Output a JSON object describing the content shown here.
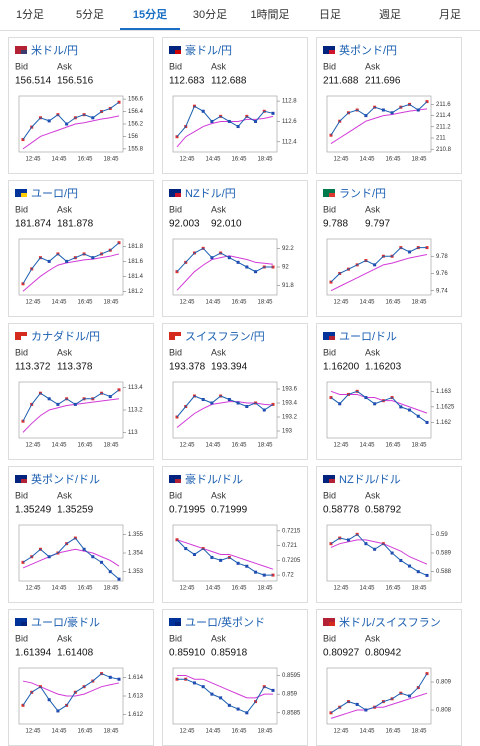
{
  "tabs": [
    "1分足",
    "5分足",
    "15分足",
    "30分足",
    "1時間足",
    "日足",
    "週足",
    "月足"
  ],
  "active_tab": 2,
  "bid_label": "Bid",
  "ask_label": "Ask",
  "x_labels": [
    "12:45",
    "14:45",
    "16:45",
    "18:45"
  ],
  "cards": [
    {
      "title": "米ドル/円",
      "bid": "156.514",
      "ask": "156.516",
      "flag": [
        "#b22234",
        "#3c3b6e"
      ],
      "ylim": [
        155.75,
        156.65
      ],
      "yticks": [
        155.8,
        156,
        156.2,
        156.4,
        156.6
      ],
      "closes": [
        155.95,
        156.15,
        156.3,
        156.25,
        156.35,
        156.2,
        156.3,
        156.35,
        156.3,
        156.4,
        156.45,
        156.55
      ],
      "ma": [
        155.8,
        155.9,
        156.0,
        156.05,
        156.1,
        156.15,
        156.2,
        156.22,
        156.25,
        156.28,
        156.3,
        156.33
      ]
    },
    {
      "title": "豪ドル/円",
      "bid": "112.683",
      "ask": "112.688",
      "flag": [
        "#00247d",
        "#cc0000"
      ],
      "ylim": [
        112.3,
        112.85
      ],
      "yticks": [
        112.4,
        112.6,
        112.8
      ],
      "closes": [
        112.45,
        112.55,
        112.75,
        112.7,
        112.6,
        112.65,
        112.6,
        112.55,
        112.65,
        112.6,
        112.7,
        112.68
      ],
      "ma": [
        112.35,
        112.45,
        112.5,
        112.55,
        112.58,
        112.6,
        112.6,
        112.6,
        112.62,
        112.62,
        112.63,
        112.65
      ]
    },
    {
      "title": "英ポンド/円",
      "bid": "211.688",
      "ask": "211.696",
      "flag": [
        "#00247d",
        "#cf142b"
      ],
      "ylim": [
        210.75,
        211.75
      ],
      "yticks": [
        210.8,
        211,
        211.2,
        211.4,
        211.6
      ],
      "closes": [
        211.05,
        211.3,
        211.45,
        211.5,
        211.4,
        211.55,
        211.5,
        211.45,
        211.55,
        211.6,
        211.5,
        211.65
      ],
      "ma": [
        210.9,
        211.0,
        211.1,
        211.2,
        211.3,
        211.35,
        211.4,
        211.42,
        211.45,
        211.48,
        211.5,
        211.52
      ]
    },
    {
      "title": "ユーロ/円",
      "bid": "181.874",
      "ask": "181.878",
      "flag": [
        "#003399",
        "#ffcc00"
      ],
      "ylim": [
        181.15,
        181.9
      ],
      "yticks": [
        181.2,
        181.4,
        181.6,
        181.8
      ],
      "closes": [
        181.3,
        181.5,
        181.65,
        181.6,
        181.7,
        181.6,
        181.65,
        181.7,
        181.65,
        181.7,
        181.75,
        181.85
      ],
      "ma": [
        181.2,
        181.3,
        181.4,
        181.48,
        181.55,
        181.58,
        181.6,
        181.62,
        181.63,
        181.65,
        181.67,
        181.7
      ]
    },
    {
      "title": "NZドル/円",
      "bid": "92.003",
      "ask": "92.010",
      "flag": [
        "#00247d",
        "#cc142b"
      ],
      "ylim": [
        91.7,
        92.3
      ],
      "yticks": [
        91.8,
        92,
        92.2
      ],
      "closes": [
        91.95,
        92.05,
        92.15,
        92.2,
        92.1,
        92.15,
        92.1,
        92.05,
        92.0,
        91.95,
        92.0,
        92.0
      ],
      "ma": [
        91.75,
        91.85,
        91.95,
        92.02,
        92.08,
        92.1,
        92.12,
        92.1,
        92.08,
        92.05,
        92.04,
        92.03
      ]
    },
    {
      "title": "ランド/円",
      "bid": "9.788",
      "ask": "9.797",
      "flag": [
        "#007a4d",
        "#de3831"
      ],
      "ylim": [
        9.735,
        9.8
      ],
      "yticks": [
        9.74,
        9.76,
        9.78
      ],
      "closes": [
        9.75,
        9.76,
        9.765,
        9.77,
        9.775,
        9.77,
        9.78,
        9.78,
        9.79,
        9.785,
        9.79,
        9.79
      ],
      "ma": [
        9.74,
        9.745,
        9.75,
        9.755,
        9.76,
        9.765,
        9.77,
        9.772,
        9.775,
        9.778,
        9.78,
        9.782
      ]
    },
    {
      "title": "カナダドル/円",
      "bid": "113.372",
      "ask": "113.378",
      "flag": [
        "#d52b1e",
        "#ffffff"
      ],
      "ylim": [
        112.95,
        113.45
      ],
      "yticks": [
        113,
        113.2,
        113.4
      ],
      "closes": [
        113.1,
        113.25,
        113.35,
        113.3,
        113.25,
        113.3,
        113.25,
        113.3,
        113.3,
        113.35,
        113.32,
        113.38
      ],
      "ma": [
        113.0,
        113.08,
        113.15,
        113.2,
        113.22,
        113.24,
        113.25,
        113.26,
        113.27,
        113.28,
        113.29,
        113.3
      ]
    },
    {
      "title": "スイスフラン/円",
      "bid": "193.378",
      "ask": "193.394",
      "flag": [
        "#d52b1e",
        "#ffffff"
      ],
      "ylim": [
        192.9,
        193.7
      ],
      "yticks": [
        193,
        193.2,
        193.4,
        193.6
      ],
      "closes": [
        193.2,
        193.35,
        193.5,
        193.45,
        193.4,
        193.5,
        193.45,
        193.4,
        193.35,
        193.4,
        193.3,
        193.38
      ],
      "ma": [
        193.05,
        193.15,
        193.25,
        193.32,
        193.38,
        193.4,
        193.42,
        193.42,
        193.4,
        193.4,
        193.38,
        193.37
      ]
    },
    {
      "title": "ユーロ/ドル",
      "bid": "1.16200",
      "ask": "1.16203",
      "flag": [
        "#003399",
        "#b22234"
      ],
      "ylim": [
        1.1615,
        1.1633
      ],
      "yticks": [
        1.162,
        1.1625,
        1.163
      ],
      "closes": [
        1.1628,
        1.1626,
        1.1629,
        1.163,
        1.1628,
        1.1626,
        1.1627,
        1.1628,
        1.1625,
        1.1624,
        1.1622,
        1.162
      ],
      "ma": [
        1.163,
        1.1629,
        1.1629,
        1.1629,
        1.1628,
        1.1628,
        1.1627,
        1.1627,
        1.1626,
        1.1625,
        1.1624,
        1.1623
      ]
    },
    {
      "title": "英ポンド/ドル",
      "bid": "1.35249",
      "ask": "1.35259",
      "flag": [
        "#00247d",
        "#b22234"
      ],
      "ylim": [
        1.3525,
        1.3555
      ],
      "yticks": [
        1.353,
        1.354,
        1.355
      ],
      "closes": [
        1.3535,
        1.3538,
        1.3542,
        1.3538,
        1.354,
        1.3545,
        1.3548,
        1.3542,
        1.3538,
        1.3535,
        1.353,
        1.3526
      ],
      "ma": [
        1.3532,
        1.3534,
        1.3536,
        1.3538,
        1.354,
        1.3541,
        1.3542,
        1.3541,
        1.354,
        1.3538,
        1.3536,
        1.3533
      ]
    },
    {
      "title": "豪ドル/ドル",
      "bid": "0.71995",
      "ask": "0.71999",
      "flag": [
        "#00247d",
        "#b22234"
      ],
      "ylim": [
        0.7198,
        0.7217
      ],
      "yticks": [
        0.72,
        0.7205,
        0.721,
        0.7215
      ],
      "closes": [
        0.7212,
        0.7209,
        0.7207,
        0.7209,
        0.7206,
        0.7205,
        0.7206,
        0.7204,
        0.7203,
        0.7201,
        0.72,
        0.72
      ],
      "ma": [
        0.7212,
        0.7211,
        0.721,
        0.7209,
        0.7208,
        0.7207,
        0.7207,
        0.7206,
        0.7205,
        0.7204,
        0.7203,
        0.7202
      ]
    },
    {
      "title": "NZドル/ドル",
      "bid": "0.58778",
      "ask": "0.58792",
      "flag": [
        "#00247d",
        "#b22234"
      ],
      "ylim": [
        0.5875,
        0.5905
      ],
      "yticks": [
        0.588,
        0.589,
        0.59
      ],
      "closes": [
        0.5895,
        0.5898,
        0.5897,
        0.59,
        0.5895,
        0.5892,
        0.5895,
        0.589,
        0.5886,
        0.5883,
        0.588,
        0.5878
      ],
      "ma": [
        0.5893,
        0.5895,
        0.5896,
        0.5897,
        0.5897,
        0.5896,
        0.5895,
        0.5893,
        0.5891,
        0.5888,
        0.5886,
        0.5884
      ]
    },
    {
      "title": "ユーロ/豪ドル",
      "bid": "1.61394",
      "ask": "1.61408",
      "flag": [
        "#003399",
        "#00247d"
      ],
      "ylim": [
        1.6115,
        1.6145
      ],
      "yticks": [
        1.612,
        1.613,
        1.614
      ],
      "closes": [
        1.6125,
        1.6132,
        1.6135,
        1.6128,
        1.6122,
        1.6125,
        1.6132,
        1.6135,
        1.6138,
        1.6142,
        1.614,
        1.6139
      ],
      "ma": [
        1.6138,
        1.6137,
        1.6135,
        1.6133,
        1.6131,
        1.613,
        1.613,
        1.6131,
        1.6133,
        1.6135,
        1.6136,
        1.6137
      ]
    },
    {
      "title": "ユーロ/英ポンド",
      "bid": "0.85910",
      "ask": "0.85918",
      "flag": [
        "#003399",
        "#00247d"
      ],
      "ylim": [
        0.8582,
        0.8597
      ],
      "yticks": [
        0.8585,
        0.859,
        0.8595
      ],
      "closes": [
        0.8594,
        0.8594,
        0.8593,
        0.8592,
        0.859,
        0.8589,
        0.8587,
        0.8586,
        0.8585,
        0.8588,
        0.8592,
        0.8591
      ],
      "ma": [
        0.8595,
        0.8595,
        0.8594,
        0.8594,
        0.8593,
        0.8592,
        0.8591,
        0.859,
        0.8589,
        0.8589,
        0.859,
        0.859
      ]
    },
    {
      "title": "米ドル/スイスフラン",
      "bid": "0.80927",
      "ask": "0.80942",
      "flag": [
        "#b22234",
        "#d52b1e"
      ],
      "ylim": [
        0.8075,
        0.8095
      ],
      "yticks": [
        0.808,
        0.809
      ],
      "closes": [
        0.8079,
        0.8081,
        0.8083,
        0.8082,
        0.808,
        0.8081,
        0.8083,
        0.8084,
        0.8086,
        0.8085,
        0.8088,
        0.8093
      ],
      "ma": [
        0.8077,
        0.8078,
        0.8079,
        0.808,
        0.808,
        0.8081,
        0.8081,
        0.8082,
        0.8083,
        0.8084,
        0.8085,
        0.8086
      ]
    }
  ]
}
